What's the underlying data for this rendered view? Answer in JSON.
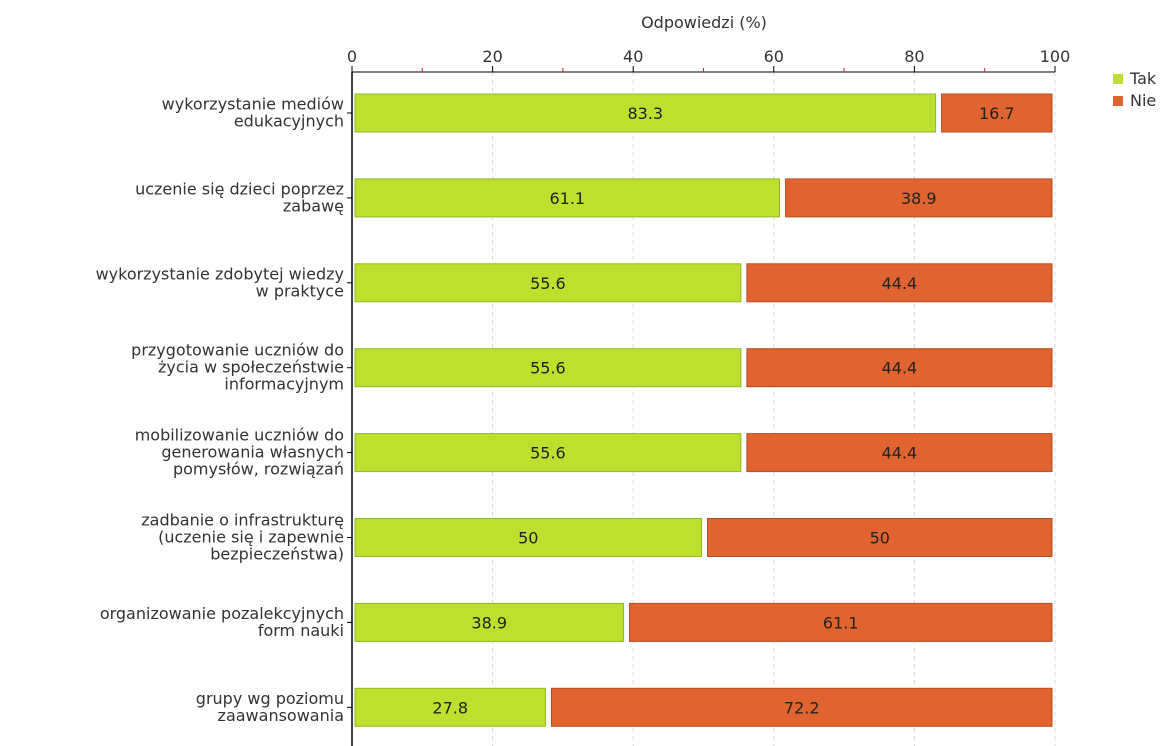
{
  "chart_data": {
    "type": "bar",
    "orientation": "horizontal",
    "stacked": true,
    "xlabel": "Odpowiedzi (%)",
    "ylabel": "",
    "xlim": [
      0,
      100
    ],
    "xticks": [
      0,
      20,
      40,
      60,
      80,
      100
    ],
    "grid": true,
    "legend_position": "top-right",
    "categories": [
      [
        "wykorzystanie mediów",
        "edukacyjnych"
      ],
      [
        "uczenie się dzieci poprzez",
        "zabawę"
      ],
      [
        "wykorzystanie zdobytej wiedzy",
        "w praktyce"
      ],
      [
        "przygotowanie uczniów do",
        "życia w społeczeństwie",
        "informacyjnym"
      ],
      [
        "mobilizowanie uczniów do",
        "generowania własnych",
        "pomysłów, rozwiązań"
      ],
      [
        "zadbanie o infrastrukturę",
        "(uczenie się i zapewnie",
        "bezpieczeństwa)"
      ],
      [
        "organizowanie pozalekcyjnych",
        "form nauki"
      ],
      [
        "grupy wg poziomu",
        "zaawansowania"
      ]
    ],
    "series": [
      {
        "name": "Tak",
        "color": "#bde02f",
        "values": [
          83.3,
          61.1,
          55.6,
          55.6,
          55.6,
          50,
          38.9,
          27.8
        ]
      },
      {
        "name": "Nie",
        "color": "#e06430",
        "values": [
          16.7,
          38.9,
          44.4,
          44.4,
          44.4,
          50,
          61.1,
          72.2
        ]
      }
    ]
  }
}
